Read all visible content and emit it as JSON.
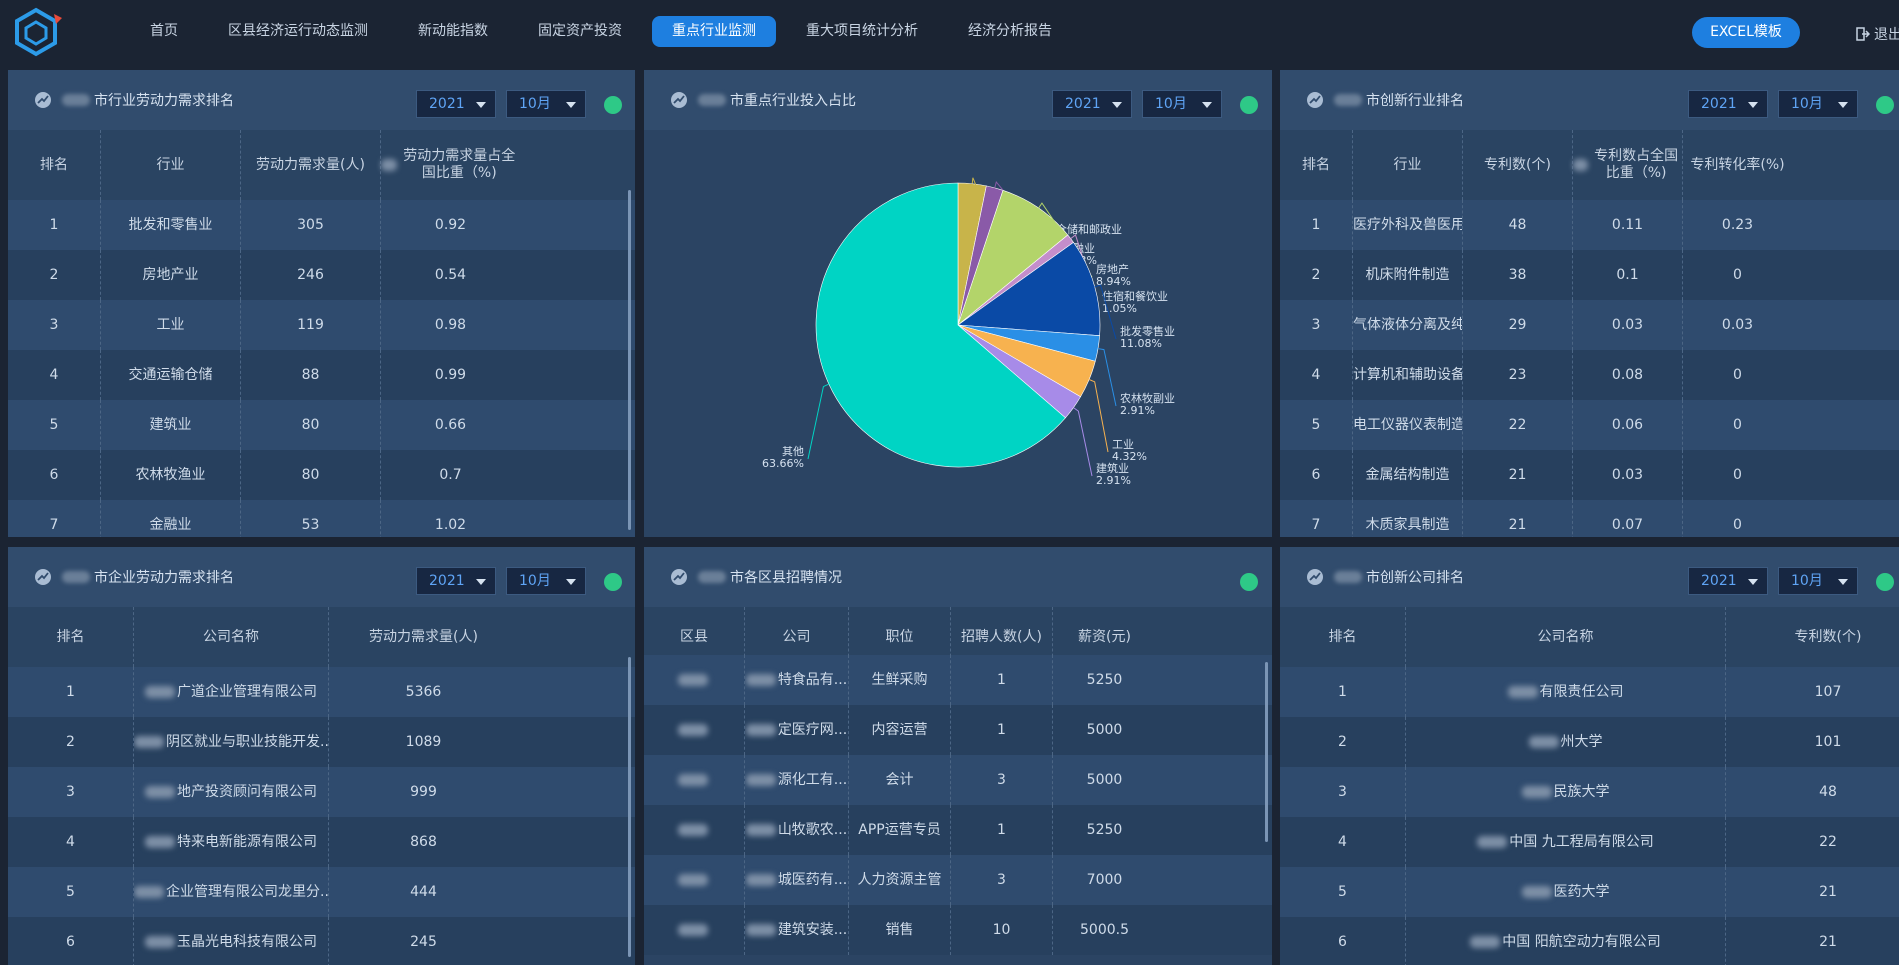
{
  "nav": {
    "items": [
      "首页",
      "区县经济运行动态监测",
      "新动能指数",
      "固定资产投资",
      "重点行业监测",
      "重大项目统计分析",
      "经济分析报告"
    ],
    "active_index": 4,
    "excel_label": "EXCEL模板",
    "logout_label": "退出"
  },
  "panels": {
    "p1": {
      "title": "市行业劳动力需求排名",
      "year": "2021",
      "month": "10月",
      "headers": [
        "排名",
        "行业",
        "劳动力需求量(人)",
        "劳动力需求量占全国比重（%)"
      ],
      "rows": [
        [
          "1",
          "批发和零售业",
          "305",
          "0.92"
        ],
        [
          "2",
          "房地产业",
          "246",
          "0.54"
        ],
        [
          "3",
          "工业",
          "119",
          "0.98"
        ],
        [
          "4",
          "交通运输仓储",
          "88",
          "0.99"
        ],
        [
          "5",
          "建筑业",
          "80",
          "0.66"
        ],
        [
          "6",
          "农林牧渔业",
          "80",
          "0.7"
        ],
        [
          "7",
          "金融业",
          "53",
          "1.02"
        ]
      ]
    },
    "p2": {
      "title": "市重点行业投入占比",
      "year": "2021",
      "month": "10月"
    },
    "p3": {
      "title": "市创新行业排名",
      "year": "2021",
      "month": "10月",
      "headers": [
        "排名",
        "行业",
        "专利数(个)",
        "专利数占全国比重（%)",
        "专利转化率(%)"
      ],
      "rows": [
        [
          "1",
          "医疗外科及兽医用...",
          "48",
          "0.11",
          "0.23"
        ],
        [
          "2",
          "机床附件制造",
          "38",
          "0.1",
          "0"
        ],
        [
          "3",
          "气体液体分离及纯...",
          "29",
          "0.03",
          "0.03"
        ],
        [
          "4",
          "计算机和辅助设备...",
          "23",
          "0.08",
          "0"
        ],
        [
          "5",
          "电工仪器仪表制造",
          "22",
          "0.06",
          "0"
        ],
        [
          "6",
          "金属结构制造",
          "21",
          "0.03",
          "0"
        ],
        [
          "7",
          "木质家具制造",
          "21",
          "0.07",
          "0"
        ]
      ]
    },
    "p4": {
      "title": "市企业劳动力需求排名",
      "year": "2021",
      "month": "10月",
      "headers": [
        "排名",
        "公司名称",
        "劳动力需求量(人)"
      ],
      "rows": [
        [
          "1",
          "广道企业管理有限公司",
          "5366"
        ],
        [
          "2",
          "阴区就业与职业技能开发...",
          "1089"
        ],
        [
          "3",
          "地产投资顾问有限公司",
          "999"
        ],
        [
          "4",
          "特来电新能源有限公司",
          "868"
        ],
        [
          "5",
          "企业管理有限公司龙里分...",
          "444"
        ],
        [
          "6",
          "玉晶光电科技有限公司",
          "245"
        ]
      ]
    },
    "p5": {
      "title": "市各区县招聘情况",
      "headers": [
        "区县",
        "公司",
        "职位",
        "招聘人数(人)",
        "薪资(元)"
      ],
      "rows": [
        [
          "",
          "特食品有...",
          "生鲜采购",
          "1",
          "5250"
        ],
        [
          "",
          "定医疗网...",
          "内容运营",
          "1",
          "5000"
        ],
        [
          "",
          "源化工有...",
          "会计",
          "3",
          "5000"
        ],
        [
          "",
          "山牧歌农...",
          "APP运营专员",
          "1",
          "5250"
        ],
        [
          "",
          "城医药有...",
          "人力资源主管",
          "3",
          "7000"
        ],
        [
          "",
          "建筑安装...",
          "销售",
          "10",
          "5000.5"
        ]
      ]
    },
    "p6": {
      "title": "市创新公司排名",
      "year": "2021",
      "month": "10月",
      "headers": [
        "排名",
        "公司名称",
        "专利数(个)"
      ],
      "rows": [
        [
          "1",
          "有限责任公司",
          "107"
        ],
        [
          "2",
          "州大学",
          "101"
        ],
        [
          "3",
          "民族大学",
          "48"
        ],
        [
          "4",
          "中国 九工程局有限公司",
          "22"
        ],
        [
          "5",
          "医药大学",
          "21"
        ],
        [
          "6",
          "中国 阳航空动力有限公司",
          "21"
        ]
      ]
    }
  },
  "chart_data": {
    "type": "pie",
    "labels": [
      "交通运输、仓储和邮政业",
      "金融业",
      "房地产",
      "住宿和餐饮业",
      "批发零售业",
      "农林牧副业",
      "工业",
      "建筑业",
      "其他"
    ],
    "values": [
      3.2,
      1.93,
      8.94,
      1.05,
      11.08,
      2.91,
      4.32,
      2.91,
      63.66
    ],
    "value_labels": [
      "3.2%",
      "1.93%",
      "8.94%",
      "1.05%",
      "11.08%",
      "2.91%",
      "4.32%",
      "2.91%",
      "63.66%"
    ],
    "colors": [
      "#c8b44a",
      "#8a5aa8",
      "#b3d46a",
      "#c48ecb",
      "#0a4aa6",
      "#2a8fe6",
      "#f7b24f",
      "#a78be8",
      "#00d4c4"
    ]
  }
}
